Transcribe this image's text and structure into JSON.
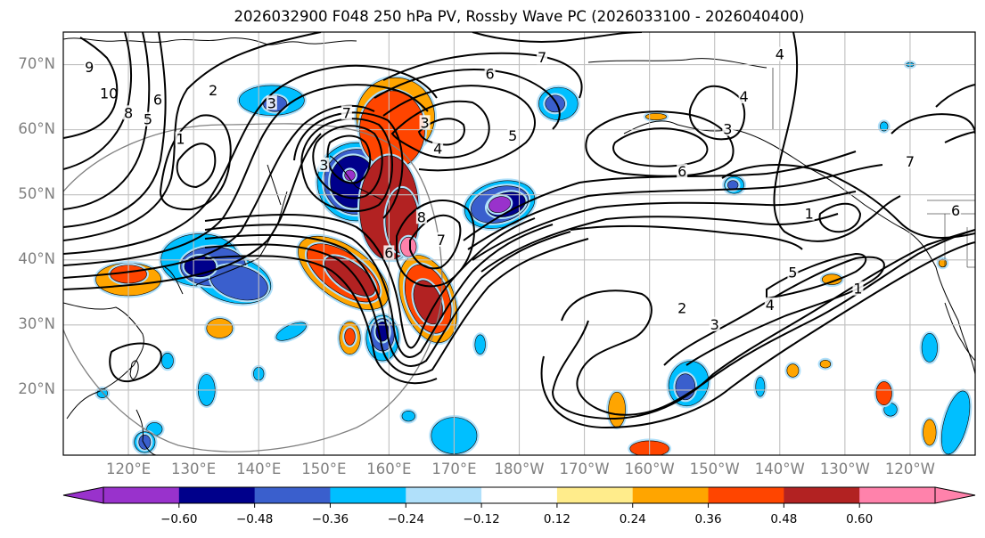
{
  "title": "2026032900 F048 250 hPa PV, Rossby Wave PC (2026033100 - 2026040400)",
  "map": {
    "projection": "equidistant-cylindrical",
    "lon_range": [
      110,
      250
    ],
    "lat_range": [
      10,
      75
    ],
    "lat_labels": [
      "70°N",
      "60°N",
      "50°N",
      "40°N",
      "30°N",
      "20°N"
    ],
    "lat_values": [
      70,
      60,
      50,
      40,
      30,
      20
    ],
    "lon_labels": [
      "120°E",
      "130°E",
      "140°E",
      "150°E",
      "160°E",
      "170°E",
      "180°W",
      "170°W",
      "160°W",
      "150°W",
      "140°W",
      "130°W",
      "120°W"
    ],
    "lon_values": [
      120,
      130,
      140,
      150,
      160,
      170,
      180,
      190,
      200,
      210,
      220,
      230,
      240
    ],
    "gridline_color": "#bfbfbf",
    "range_circle_color": "#808080"
  },
  "colorbar": {
    "levels": [
      -0.6,
      -0.48,
      -0.36,
      -0.24,
      -0.12,
      0.12,
      0.24,
      0.36,
      0.48,
      0.6
    ],
    "tick_labels": [
      "−0.60",
      "−0.48",
      "−0.36",
      "−0.24",
      "−0.12",
      "0.12",
      "0.24",
      "0.36",
      "0.48",
      "0.60"
    ],
    "colors": [
      "#9932cc",
      "#00008b",
      "#3a5fcd",
      "#00bfff",
      "#b0e0fa",
      "#ffffff",
      "#ffec8b",
      "#ffa500",
      "#ff4500",
      "#b22222",
      "#ff82ab"
    ],
    "extend": "both"
  },
  "pc_anomalies": [
    {
      "lon": 160,
      "lat": 48,
      "rx": 4.5,
      "ry": 8,
      "level": 4
    },
    {
      "lon": 161,
      "lat": 47,
      "rx": 3,
      "ry": 7,
      "level": 3
    },
    {
      "lon": 160.5,
      "lat": 60,
      "rx": 5,
      "ry": 6,
      "level": 3
    },
    {
      "lon": 161,
      "lat": 62,
      "rx": 6,
      "ry": 6,
      "level": 2
    },
    {
      "lon": 162,
      "lat": 46,
      "rx": 2.5,
      "ry": 5,
      "level": 4
    },
    {
      "lon": 163,
      "lat": 42,
      "rx": 1.2,
      "ry": 1.5,
      "level": 5
    },
    {
      "lon": 153,
      "lat": 38,
      "rx": 8,
      "ry": 4,
      "level": 2,
      "rot": 35
    },
    {
      "lon": 153,
      "lat": 38,
      "rx": 6.5,
      "ry": 3,
      "level": 3,
      "rot": 35
    },
    {
      "lon": 154,
      "lat": 37.5,
      "rx": 4.5,
      "ry": 2,
      "level": 4,
      "rot": 35
    },
    {
      "lon": 166,
      "lat": 34,
      "rx": 4,
      "ry": 7,
      "level": 2,
      "rot": -20
    },
    {
      "lon": 166,
      "lat": 34,
      "rx": 3.2,
      "ry": 5.5,
      "level": 3,
      "rot": -20
    },
    {
      "lon": 166,
      "lat": 33.5,
      "rx": 2,
      "ry": 3.5,
      "level": 4,
      "rot": -20
    },
    {
      "lon": 120,
      "lat": 37,
      "rx": 5,
      "ry": 2.5,
      "level": 2
    },
    {
      "lon": 120,
      "lat": 37.8,
      "rx": 2.8,
      "ry": 1.4,
      "level": 3
    },
    {
      "lon": 134,
      "lat": 29.5,
      "rx": 2,
      "ry": 1.5,
      "level": 2
    },
    {
      "lon": 154,
      "lat": 28,
      "rx": 1.6,
      "ry": 2.5,
      "level": 2
    },
    {
      "lon": 154,
      "lat": 28.2,
      "rx": 0.8,
      "ry": 1.3,
      "level": 3
    },
    {
      "lon": 195,
      "lat": 17,
      "rx": 1.3,
      "ry": 2.7,
      "level": 2
    },
    {
      "lon": 200,
      "lat": 11,
      "rx": 3,
      "ry": 1.2,
      "level": 3
    },
    {
      "lon": 201,
      "lat": 62,
      "rx": 1.6,
      "ry": 0.5,
      "level": 2
    },
    {
      "lon": 228,
      "lat": 37,
      "rx": 1.5,
      "ry": 0.8,
      "level": 2
    },
    {
      "lon": 236,
      "lat": 19.5,
      "rx": 1.2,
      "ry": 1.8,
      "level": 3
    },
    {
      "lon": 245,
      "lat": 39.5,
      "rx": 0.6,
      "ry": 0.6,
      "level": 2
    },
    {
      "lon": 243,
      "lat": 13.5,
      "rx": 1,
      "ry": 2,
      "level": 2
    },
    {
      "lon": 222,
      "lat": 23,
      "rx": 0.9,
      "ry": 1,
      "level": 2
    },
    {
      "lon": 227,
      "lat": 24,
      "rx": 0.8,
      "ry": 0.6,
      "level": 2
    }
  ],
  "nc_anomalies": [
    {
      "lon": 155,
      "lat": 52,
      "rx": 6,
      "ry": 6,
      "level": 3
    },
    {
      "lon": 155,
      "lat": 52,
      "rx": 5,
      "ry": 5,
      "level": 2
    },
    {
      "lon": 154.5,
      "lat": 52,
      "rx": 3.5,
      "ry": 4,
      "level": 1
    },
    {
      "lon": 154,
      "lat": 53,
      "rx": 0.8,
      "ry": 0.8,
      "level": 0
    },
    {
      "lon": 177,
      "lat": 48.5,
      "rx": 5.5,
      "ry": 3.5,
      "level": 3,
      "rot": -15
    },
    {
      "lon": 177,
      "lat": 48.5,
      "rx": 4.5,
      "ry": 2.7,
      "level": 2,
      "rot": -15
    },
    {
      "lon": 178,
      "lat": 48.5,
      "rx": 3,
      "ry": 1.8,
      "level": 1,
      "rot": -15
    },
    {
      "lon": 177,
      "lat": 48.5,
      "rx": 1.7,
      "ry": 1.2,
      "level": 0,
      "rot": -15
    },
    {
      "lon": 131,
      "lat": 40,
      "rx": 6,
      "ry": 4,
      "level": 3
    },
    {
      "lon": 136,
      "lat": 37,
      "rx": 6,
      "ry": 3.5,
      "level": 3,
      "rot": 15
    },
    {
      "lon": 133,
      "lat": 39,
      "rx": 5,
      "ry": 3,
      "level": 2
    },
    {
      "lon": 137,
      "lat": 36.5,
      "rx": 4.5,
      "ry": 2.5,
      "level": 2,
      "rot": 15
    },
    {
      "lon": 131,
      "lat": 39,
      "rx": 2.4,
      "ry": 1.6,
      "level": 1
    },
    {
      "lon": 142,
      "lat": 64.5,
      "rx": 5,
      "ry": 2.3,
      "level": 3
    },
    {
      "lon": 142.5,
      "lat": 64,
      "rx": 1.8,
      "ry": 1.2,
      "level": 2
    },
    {
      "lon": 186,
      "lat": 64,
      "rx": 3,
      "ry": 2.5,
      "level": 3
    },
    {
      "lon": 185.5,
      "lat": 64,
      "rx": 1.5,
      "ry": 1.3,
      "level": 2
    },
    {
      "lon": 159,
      "lat": 28,
      "rx": 2.5,
      "ry": 3.5,
      "level": 3
    },
    {
      "lon": 159,
      "lat": 28.5,
      "rx": 1.8,
      "ry": 2.5,
      "level": 2
    },
    {
      "lon": 159,
      "lat": 29,
      "rx": 1,
      "ry": 1.5,
      "level": 1
    },
    {
      "lon": 206,
      "lat": 21,
      "rx": 3,
      "ry": 3.5,
      "level": 3,
      "rot": 20
    },
    {
      "lon": 205.5,
      "lat": 20.5,
      "rx": 1.5,
      "ry": 2,
      "level": 2
    },
    {
      "lon": 213,
      "lat": 51.5,
      "rx": 1.5,
      "ry": 1.3,
      "level": 3
    },
    {
      "lon": 212.8,
      "lat": 51.5,
      "rx": 0.8,
      "ry": 0.7,
      "level": 2
    },
    {
      "lon": 170,
      "lat": 13,
      "rx": 3.5,
      "ry": 2.8,
      "level": 3
    },
    {
      "lon": 145,
      "lat": 29,
      "rx": 2.5,
      "ry": 1,
      "level": 3,
      "rot": -25
    },
    {
      "lon": 126,
      "lat": 24.5,
      "rx": 0.9,
      "ry": 1.2,
      "level": 3
    },
    {
      "lon": 132,
      "lat": 20,
      "rx": 1.3,
      "ry": 2.4,
      "level": 3
    },
    {
      "lon": 140,
      "lat": 22.5,
      "rx": 0.8,
      "ry": 1,
      "level": 3
    },
    {
      "lon": 163,
      "lat": 16,
      "rx": 1,
      "ry": 0.8,
      "level": 3
    },
    {
      "lon": 174,
      "lat": 27,
      "rx": 0.8,
      "ry": 1.5,
      "level": 3
    },
    {
      "lon": 217,
      "lat": 20.5,
      "rx": 0.7,
      "ry": 1.5,
      "level": 3
    },
    {
      "lon": 243,
      "lat": 26.5,
      "rx": 1.2,
      "ry": 2.2,
      "level": 3
    },
    {
      "lon": 247,
      "lat": 15,
      "rx": 1.8,
      "ry": 5,
      "level": 3,
      "rot": 15
    },
    {
      "lon": 237,
      "lat": 17,
      "rx": 1,
      "ry": 1,
      "level": 3
    },
    {
      "lon": 236,
      "lat": 60.5,
      "rx": 0.6,
      "ry": 0.7,
      "level": 3
    },
    {
      "lon": 240,
      "lat": 70,
      "rx": 0.6,
      "ry": 0.3,
      "level": 3
    },
    {
      "lon": 124,
      "lat": 14,
      "rx": 1.2,
      "ry": 1,
      "level": 3
    },
    {
      "lon": 122.5,
      "lat": 12,
      "rx": 1.6,
      "ry": 1.6,
      "level": 3
    },
    {
      "lon": 122.5,
      "lat": 12,
      "rx": 0.9,
      "ry": 1.1,
      "level": 2
    },
    {
      "lon": 116,
      "lat": 19.5,
      "rx": 0.8,
      "ry": 0.7,
      "level": 3
    }
  ],
  "contour_labels": [
    {
      "text": "9",
      "lon": 114,
      "lat": 69.5
    },
    {
      "text": "10",
      "lon": 117,
      "lat": 65.5
    },
    {
      "text": "8",
      "lon": 120,
      "lat": 62.5
    },
    {
      "text": "5",
      "lon": 123,
      "lat": 61.5
    },
    {
      "text": "6",
      "lon": 124.5,
      "lat": 64.5
    },
    {
      "text": "2",
      "lon": 133,
      "lat": 66
    },
    {
      "text": "1",
      "lon": 128,
      "lat": 58.5
    },
    {
      "text": "3",
      "lon": 142,
      "lat": 64
    },
    {
      "text": "7",
      "lon": 153.5,
      "lat": 62.5
    },
    {
      "text": "3",
      "lon": 150,
      "lat": 54.5
    },
    {
      "text": "3",
      "lon": 165.5,
      "lat": 61
    },
    {
      "text": "4",
      "lon": 167.5,
      "lat": 57
    },
    {
      "text": "5",
      "lon": 179,
      "lat": 59
    },
    {
      "text": "6",
      "lon": 175.5,
      "lat": 68.5
    },
    {
      "text": "7",
      "lon": 183.5,
      "lat": 71
    },
    {
      "text": "8",
      "lon": 165,
      "lat": 46.5
    },
    {
      "text": "6",
      "lon": 160,
      "lat": 41
    },
    {
      "text": "7",
      "lon": 168,
      "lat": 43
    },
    {
      "text": "6",
      "lon": 205,
      "lat": 53.5
    },
    {
      "text": "4",
      "lon": 214.5,
      "lat": 65
    },
    {
      "text": "3",
      "lon": 212,
      "lat": 60
    },
    {
      "text": "1",
      "lon": 224.5,
      "lat": 47
    },
    {
      "text": "6",
      "lon": 247,
      "lat": 47.5
    },
    {
      "text": "7",
      "lon": 240,
      "lat": 55
    },
    {
      "text": "1",
      "lon": 232,
      "lat": 35.5
    },
    {
      "text": "5",
      "lon": 222,
      "lat": 38
    },
    {
      "text": "4",
      "lon": 218.5,
      "lat": 33
    },
    {
      "text": "3",
      "lon": 210,
      "lat": 30
    },
    {
      "text": "2",
      "lon": 205,
      "lat": 32.5
    },
    {
      "text": "4",
      "lon": 220,
      "lat": 71.5
    }
  ]
}
